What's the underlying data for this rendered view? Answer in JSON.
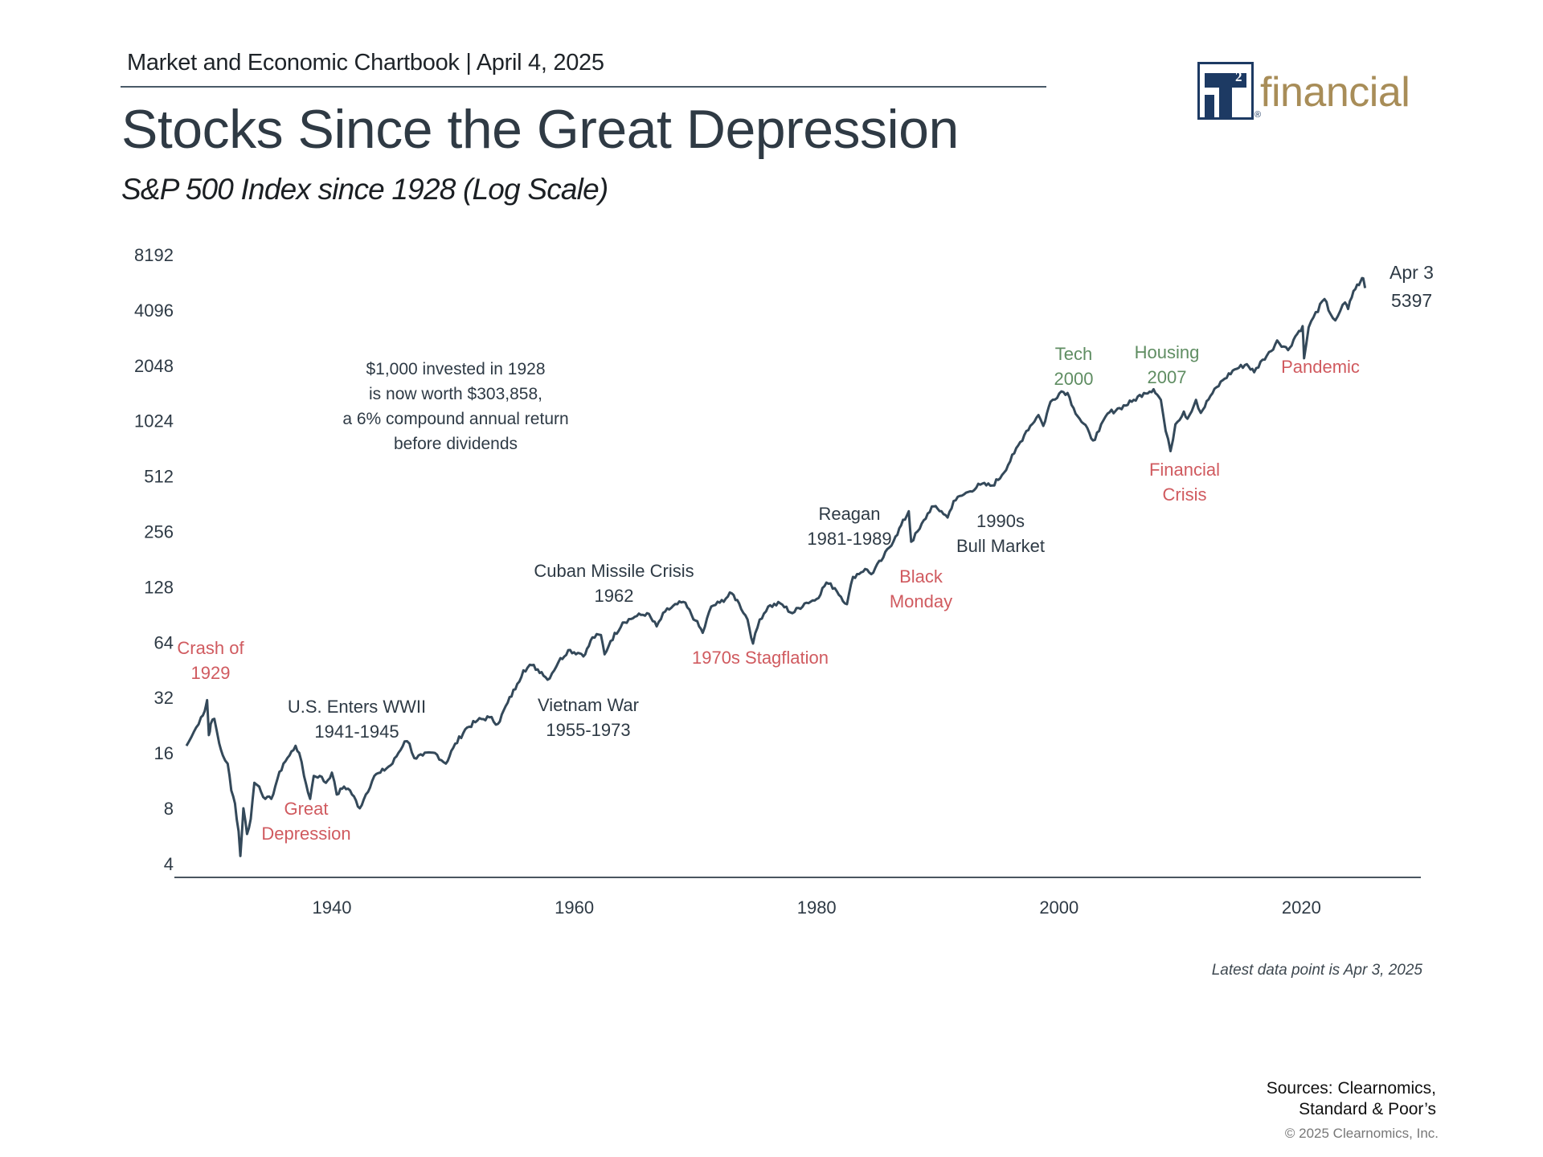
{
  "header": {
    "chartbook": "Market and Economic Chartbook | April 4, 2025",
    "title": "Stocks Since the Great Depression",
    "subtitle": "S&P 500 Index since 1928 (Log Scale)"
  },
  "logo": {
    "mark": "T",
    "superscript": "2",
    "registered": "®",
    "word": "financial",
    "colors": {
      "navy": "#1d3a63",
      "gold": "#a88d58"
    }
  },
  "chart_data": {
    "type": "line",
    "title": "Stocks Since the Great Depression",
    "subtitle": "S&P 500 Index since 1928 (Log Scale)",
    "xlabel": "",
    "ylabel": "",
    "yscale": "log2",
    "ylim": [
      4,
      8192
    ],
    "xlim": [
      1928,
      2030
    ],
    "grid": false,
    "legend": "none",
    "y_ticks": [
      4,
      8,
      16,
      32,
      64,
      128,
      256,
      512,
      1024,
      2048,
      4096,
      8192
    ],
    "x_ticks": [
      1940,
      1960,
      1980,
      2000,
      2020
    ],
    "line_color": "#34495a",
    "series": [
      {
        "name": "S&P 500 Index",
        "points": [
          [
            1928.0,
            17.5
          ],
          [
            1928.4,
            19.5
          ],
          [
            1928.8,
            22
          ],
          [
            1929.2,
            25
          ],
          [
            1929.5,
            27
          ],
          [
            1929.7,
            31
          ],
          [
            1929.85,
            20
          ],
          [
            1930.0,
            23
          ],
          [
            1930.3,
            24.5
          ],
          [
            1930.7,
            18
          ],
          [
            1931.0,
            15.5
          ],
          [
            1931.4,
            14
          ],
          [
            1931.7,
            10
          ],
          [
            1932.0,
            8.5
          ],
          [
            1932.3,
            6
          ],
          [
            1932.45,
            4.4
          ],
          [
            1932.7,
            8
          ],
          [
            1933.0,
            5.8
          ],
          [
            1933.3,
            7
          ],
          [
            1933.6,
            11
          ],
          [
            1934.0,
            10.5
          ],
          [
            1934.5,
            9
          ],
          [
            1935.0,
            9
          ],
          [
            1935.5,
            11.5
          ],
          [
            1936.0,
            14
          ],
          [
            1936.5,
            15.5
          ],
          [
            1937.0,
            17.5
          ],
          [
            1937.3,
            16
          ],
          [
            1937.7,
            12
          ],
          [
            1938.2,
            9
          ],
          [
            1938.5,
            12
          ],
          [
            1939.0,
            12
          ],
          [
            1939.5,
            11
          ],
          [
            1940.0,
            12.5
          ],
          [
            1940.4,
            9.5
          ],
          [
            1941.0,
            10.5
          ],
          [
            1941.5,
            10
          ],
          [
            1942.3,
            8
          ],
          [
            1942.8,
            9.5
          ],
          [
            1943.5,
            12
          ],
          [
            1944.0,
            12.5
          ],
          [
            1945.0,
            14
          ],
          [
            1946.0,
            18.5
          ],
          [
            1946.4,
            18
          ],
          [
            1946.8,
            15
          ],
          [
            1947.5,
            15.5
          ],
          [
            1948.5,
            16
          ],
          [
            1949.4,
            14
          ],
          [
            1950.0,
            17
          ],
          [
            1951.0,
            21.5
          ],
          [
            1952.0,
            24
          ],
          [
            1953.0,
            25
          ],
          [
            1953.7,
            23
          ],
          [
            1954.5,
            30
          ],
          [
            1955.3,
            38
          ],
          [
            1955.8,
            45
          ],
          [
            1956.5,
            48
          ],
          [
            1957.3,
            44
          ],
          [
            1957.8,
            40
          ],
          [
            1958.7,
            50
          ],
          [
            1959.5,
            58
          ],
          [
            1960.3,
            56
          ],
          [
            1960.9,
            55
          ],
          [
            1961.5,
            68
          ],
          [
            1962.2,
            70
          ],
          [
            1962.5,
            55
          ],
          [
            1963.0,
            65
          ],
          [
            1964.0,
            82
          ],
          [
            1965.0,
            88
          ],
          [
            1966.0,
            92
          ],
          [
            1966.8,
            78
          ],
          [
            1967.5,
            94
          ],
          [
            1968.5,
            103
          ],
          [
            1969.0,
            106
          ],
          [
            1970.0,
            84
          ],
          [
            1970.6,
            72
          ],
          [
            1971.3,
            100
          ],
          [
            1972.0,
            105
          ],
          [
            1973.0,
            118
          ],
          [
            1973.6,
            104
          ],
          [
            1974.3,
            85
          ],
          [
            1974.75,
            63
          ],
          [
            1975.3,
            85
          ],
          [
            1976.0,
            100
          ],
          [
            1977.0,
            104
          ],
          [
            1978.0,
            92
          ],
          [
            1979.0,
            104
          ],
          [
            1980.0,
            110
          ],
          [
            1980.8,
            135
          ],
          [
            1981.5,
            126
          ],
          [
            1982.5,
            103
          ],
          [
            1983.0,
            145
          ],
          [
            1984.0,
            160
          ],
          [
            1984.5,
            150
          ],
          [
            1985.5,
            185
          ],
          [
            1986.5,
            240
          ],
          [
            1987.6,
            330
          ],
          [
            1987.8,
            225
          ],
          [
            1988.5,
            265
          ],
          [
            1989.5,
            350
          ],
          [
            1990.3,
            330
          ],
          [
            1990.8,
            305
          ],
          [
            1991.3,
            375
          ],
          [
            1992.5,
            420
          ],
          [
            1993.5,
            460
          ],
          [
            1994.5,
            455
          ],
          [
            1995.3,
            520
          ],
          [
            1996.3,
            680
          ],
          [
            1997.3,
            900
          ],
          [
            1998.3,
            1100
          ],
          [
            1998.7,
            960
          ],
          [
            1999.3,
            1300
          ],
          [
            2000.2,
            1480
          ],
          [
            2000.7,
            1450
          ],
          [
            2001.2,
            1200
          ],
          [
            2001.7,
            1050
          ],
          [
            2002.5,
            880
          ],
          [
            2002.8,
            800
          ],
          [
            2003.3,
            900
          ],
          [
            2004.0,
            1120
          ],
          [
            2005.0,
            1200
          ],
          [
            2006.0,
            1300
          ],
          [
            2007.0,
            1450
          ],
          [
            2007.8,
            1520
          ],
          [
            2008.4,
            1330
          ],
          [
            2008.8,
            900
          ],
          [
            2009.2,
            700
          ],
          [
            2009.6,
            980
          ],
          [
            2010.3,
            1150
          ],
          [
            2010.6,
            1050
          ],
          [
            2011.3,
            1330
          ],
          [
            2011.7,
            1130
          ],
          [
            2012.5,
            1400
          ],
          [
            2013.5,
            1700
          ],
          [
            2014.5,
            1950
          ],
          [
            2015.5,
            2080
          ],
          [
            2016.1,
            1880
          ],
          [
            2016.8,
            2200
          ],
          [
            2017.5,
            2450
          ],
          [
            2018.0,
            2800
          ],
          [
            2018.9,
            2480
          ],
          [
            2019.5,
            2950
          ],
          [
            2020.1,
            3350
          ],
          [
            2020.22,
            2240
          ],
          [
            2020.6,
            3300
          ],
          [
            2021.0,
            3750
          ],
          [
            2021.9,
            4700
          ],
          [
            2022.4,
            3900
          ],
          [
            2022.8,
            3600
          ],
          [
            2023.2,
            4050
          ],
          [
            2023.6,
            4500
          ],
          [
            2023.85,
            4150
          ],
          [
            2024.3,
            5200
          ],
          [
            2024.9,
            5900
          ],
          [
            2025.1,
            6100
          ],
          [
            2025.25,
            5397
          ]
        ]
      }
    ],
    "end_label": {
      "date": "Apr 3",
      "value": 5397
    },
    "annotations": [
      {
        "id": "invested",
        "lines": [
          "$1,000 invested in 1928",
          "is now worth $303,858,",
          "a 6% compound annual return",
          "before dividends"
        ],
        "color": "dark"
      },
      {
        "id": "crash-1929",
        "lines": [
          "Crash of",
          "1929"
        ],
        "color": "red"
      },
      {
        "id": "great-depression",
        "lines": [
          "Great",
          "Depression"
        ],
        "color": "red"
      },
      {
        "id": "wwii",
        "lines": [
          "U.S. Enters WWII",
          "1941-1945"
        ],
        "color": "dark"
      },
      {
        "id": "cuban",
        "lines": [
          "Cuban Missile Crisis",
          "1962"
        ],
        "color": "dark"
      },
      {
        "id": "vietnam",
        "lines": [
          "Vietnam War",
          "1955-1973"
        ],
        "color": "dark"
      },
      {
        "id": "stagflation",
        "lines": [
          "1970s Stagflation"
        ],
        "color": "red"
      },
      {
        "id": "reagan",
        "lines": [
          "Reagan",
          "1981-1989"
        ],
        "color": "dark"
      },
      {
        "id": "black-monday",
        "lines": [
          "Black",
          "Monday"
        ],
        "color": "red"
      },
      {
        "id": "bull-90s",
        "lines": [
          "1990s",
          "Bull Market"
        ],
        "color": "dark"
      },
      {
        "id": "tech",
        "lines": [
          "Tech",
          "2000"
        ],
        "color": "green"
      },
      {
        "id": "housing",
        "lines": [
          "Housing",
          "2007"
        ],
        "color": "green"
      },
      {
        "id": "financial-crisis",
        "lines": [
          "Financial",
          "Crisis"
        ],
        "color": "red"
      },
      {
        "id": "pandemic",
        "lines": [
          "Pandemic"
        ],
        "color": "red"
      }
    ],
    "colors": {
      "dark": "#2e3a45",
      "red": "#d05a5f",
      "green": "#5f8d62"
    }
  },
  "footer": {
    "latest": "Latest data point is Apr 3, 2025",
    "sources_line1": "Sources: Clearnomics,",
    "sources_line2": "Standard & Poor’s",
    "copyright": "© 2025 Clearnomics, Inc."
  }
}
